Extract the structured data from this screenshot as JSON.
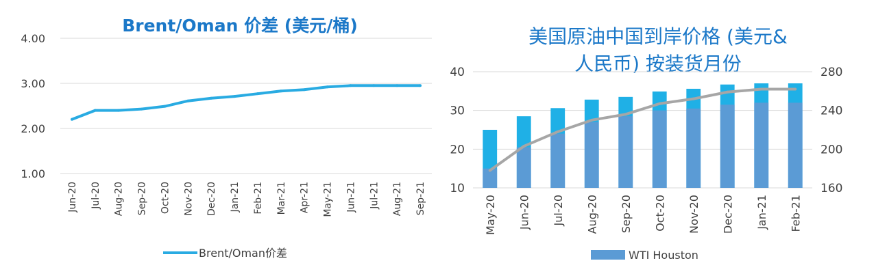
{
  "chart_data": [
    {
      "type": "line",
      "title": "Brent/Oman 价差 (美元/桶)",
      "categories": [
        "Jun-20",
        "Jul-20",
        "Aug-20",
        "Sep-20",
        "Oct-20",
        "Nov-20",
        "Dec-20",
        "Jan-21",
        "Feb-21",
        "Mar-21",
        "Apr-21",
        "May-21",
        "Jun-21",
        "Jul-21",
        "Aug-21",
        "Sep-21"
      ],
      "series": [
        {
          "name": "Brent/Oman价差",
          "values": [
            2.2,
            2.4,
            2.4,
            2.43,
            2.49,
            2.61,
            2.67,
            2.71,
            2.77,
            2.83,
            2.86,
            2.92,
            2.95,
            2.95,
            2.95,
            2.95
          ]
        }
      ],
      "ylim": [
        1.0,
        4.0
      ],
      "yticks": [
        "1.00",
        "2.00",
        "3.00",
        "4.00"
      ],
      "grid": true,
      "legend": "bottom",
      "colors": {
        "line": "#29abe2",
        "title": "#1b78c8",
        "grid": "#d9d9d9",
        "text": "#404040"
      }
    },
    {
      "type": "bar",
      "title_line1": "美国原油中国到岸价格 (美元&",
      "title_line2": "人民币) 按装货月份",
      "categories": [
        "May-20",
        "Jun-20",
        "Jul-20",
        "Aug-20",
        "Sep-20",
        "Oct-20",
        "Nov-20",
        "Dec-20",
        "Jan-21",
        "Feb-21"
      ],
      "series": [
        {
          "name": "WTI Houston",
          "axis": "left",
          "values": [
            25,
            28.5,
            30.6,
            32.8,
            33.5,
            34.9,
            35.6,
            36.7,
            37.0,
            37.0
          ],
          "inner_values": [
            15,
            20.5,
            24,
            27,
            28.5,
            30,
            30.5,
            31.5,
            32,
            32
          ]
        },
        {
          "axis": "right",
          "type": "line",
          "values": [
            178,
            203,
            218,
            230,
            236,
            247,
            252,
            259,
            262,
            262
          ]
        }
      ],
      "ylim_left": [
        10,
        40
      ],
      "yticks_left": [
        "10",
        "20",
        "30",
        "40"
      ],
      "ylim_right": [
        160,
        280
      ],
      "yticks_right": [
        "160",
        "200",
        "240",
        "280"
      ],
      "grid": true,
      "legend": "bottom",
      "colors": {
        "bar_top": "#1fb0e6",
        "bar_bottom": "#5b9bd5",
        "line": "#a6a6a6",
        "title": "#1b78c8",
        "grid": "#d9d9d9",
        "text": "#404040"
      }
    }
  ]
}
